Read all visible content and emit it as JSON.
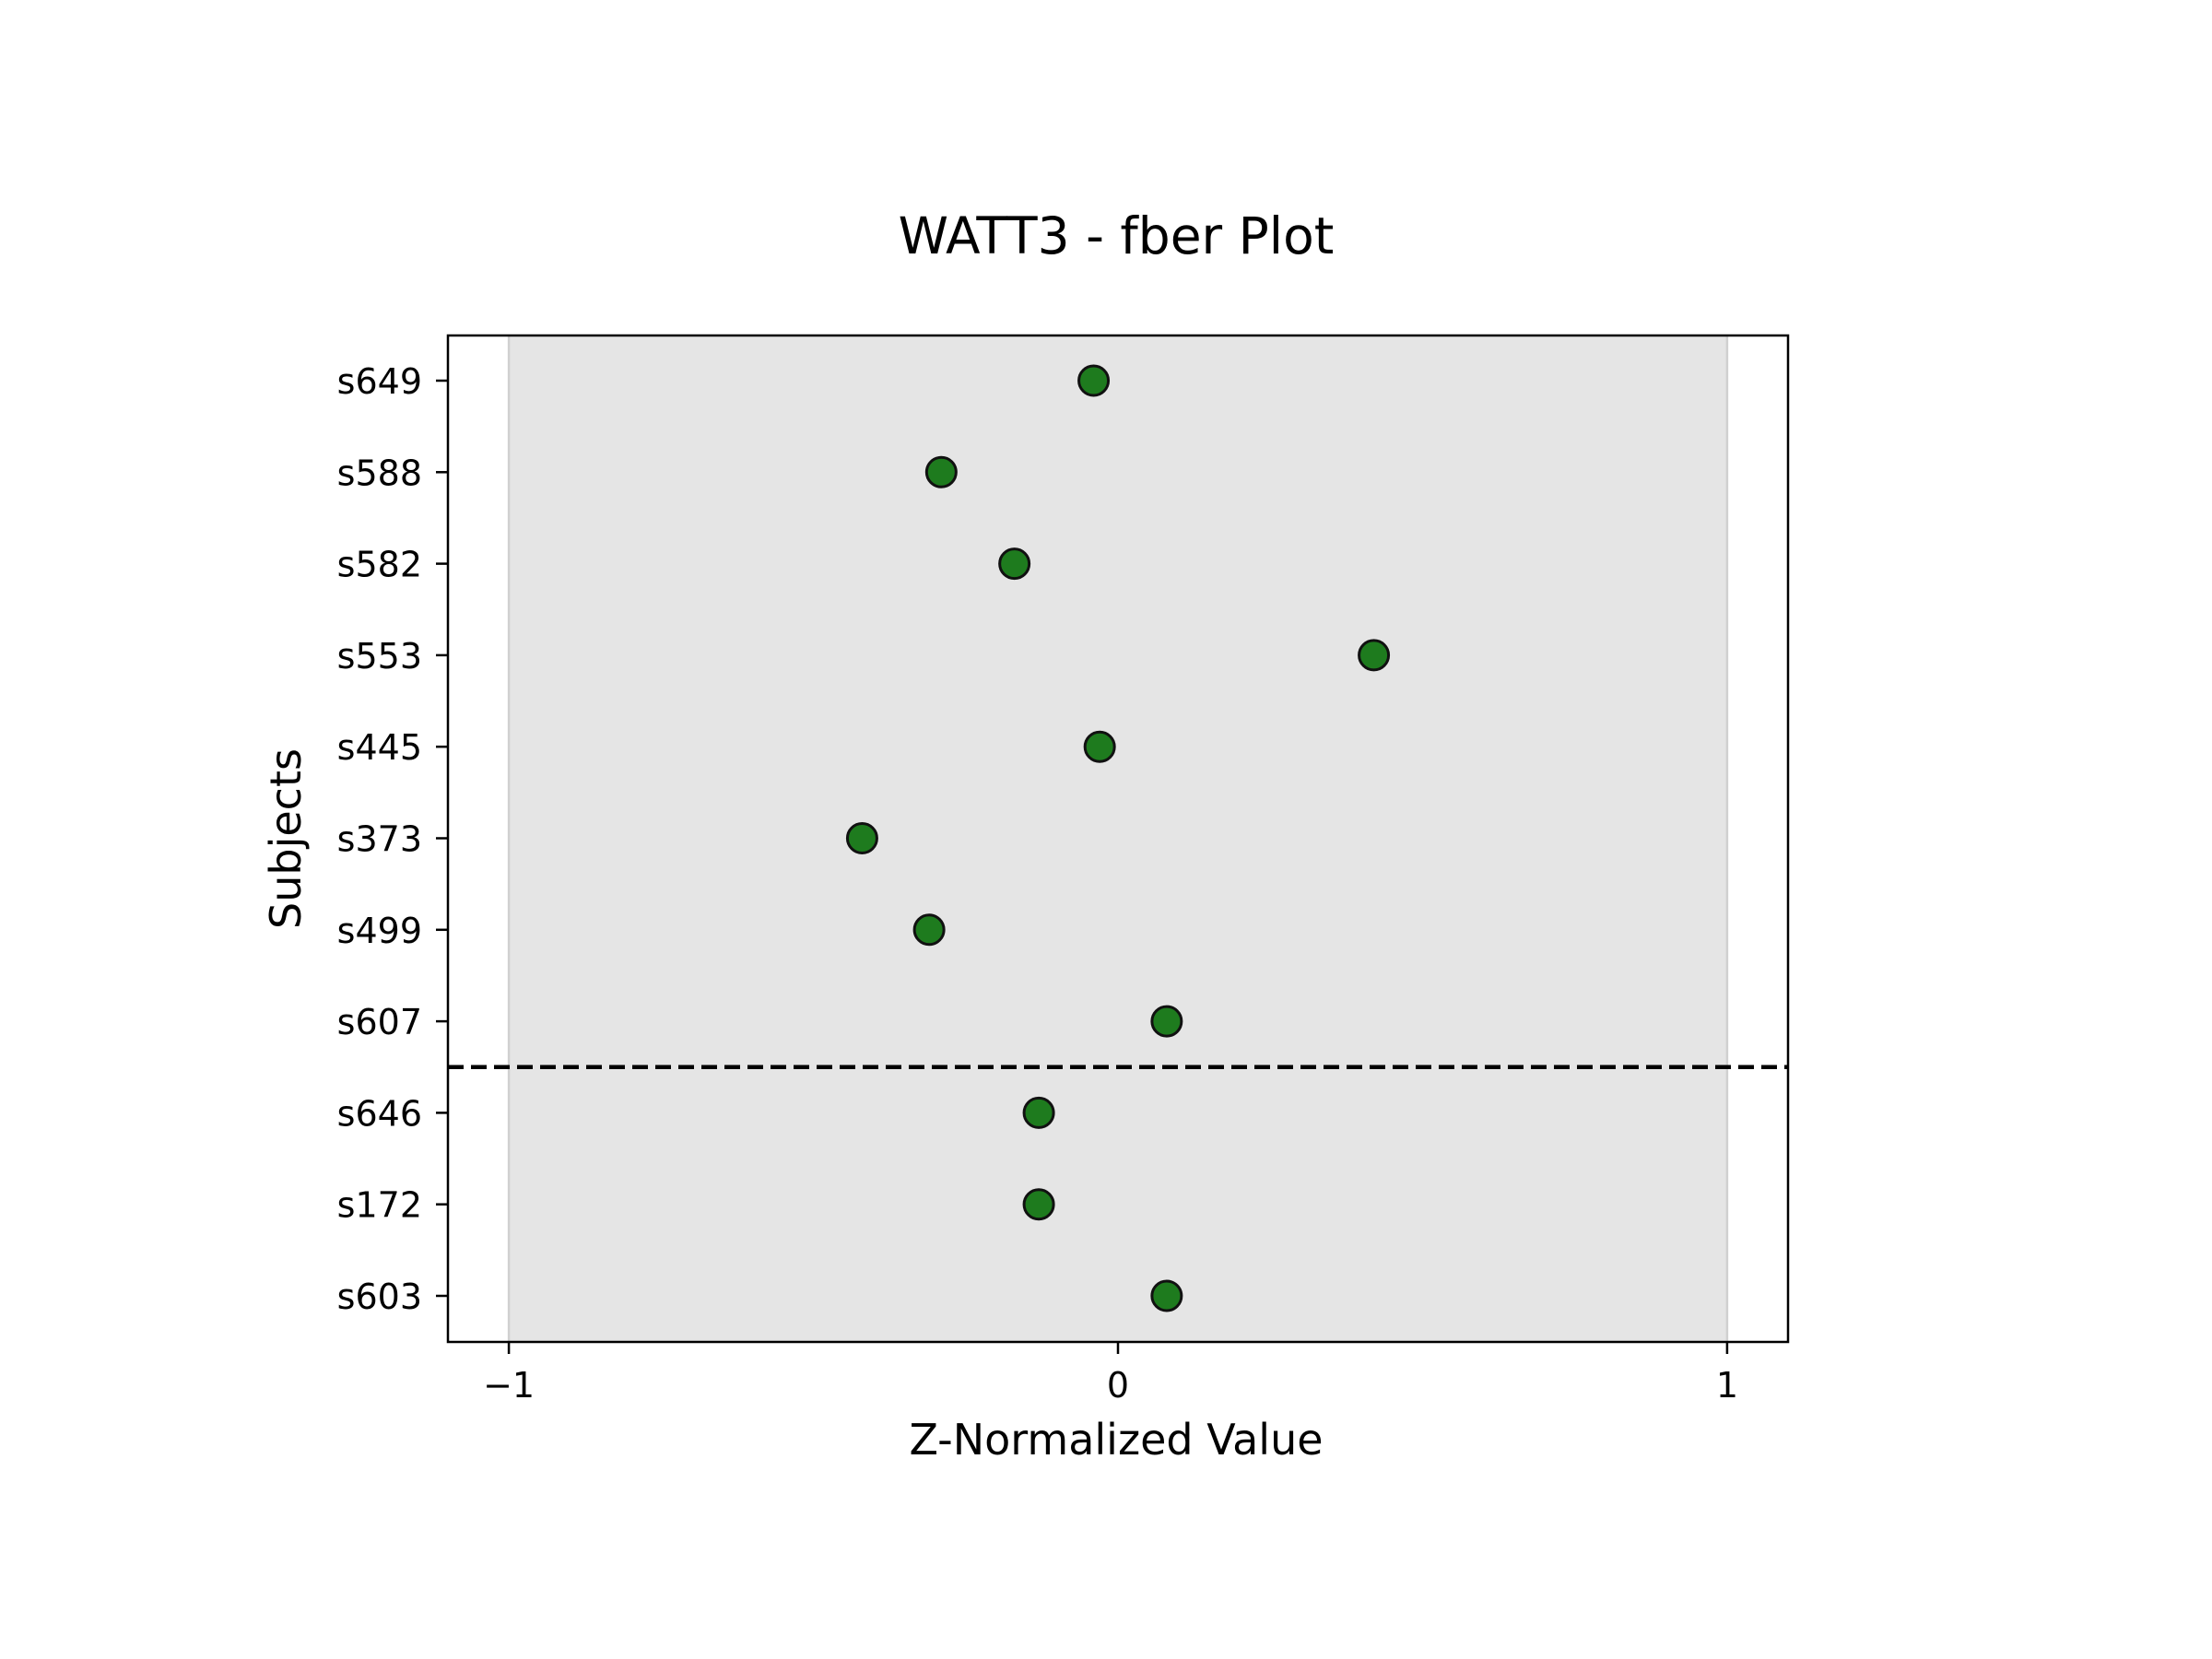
{
  "chart_data": {
    "type": "scatter",
    "title": "WATT3 - fber Plot",
    "xlabel": "Z-Normalized Value",
    "ylabel": "Subjects",
    "xlim": [
      -1.1,
      1.1
    ],
    "x_ticks": [
      {
        "value": -1,
        "label": "−1"
      },
      {
        "value": 0,
        "label": "0"
      },
      {
        "value": 1,
        "label": "1"
      }
    ],
    "shaded_band": [
      -1,
      1
    ],
    "subjects": [
      "s649",
      "s588",
      "s582",
      "s553",
      "s445",
      "s373",
      "s499",
      "s607",
      "s646",
      "s172",
      "s603"
    ],
    "values": [
      -0.04,
      -0.29,
      -0.17,
      0.42,
      -0.03,
      -0.42,
      -0.31,
      0.08,
      -0.13,
      -0.13,
      0.08
    ],
    "separator_after_index": 7,
    "colors": {
      "point_fill": "#1e7b1e",
      "point_edge": "#111111",
      "band": "#e5e5e5",
      "band_edge": "#d0d0d0",
      "separator": "#000000"
    },
    "grid": false,
    "legend": "none"
  }
}
